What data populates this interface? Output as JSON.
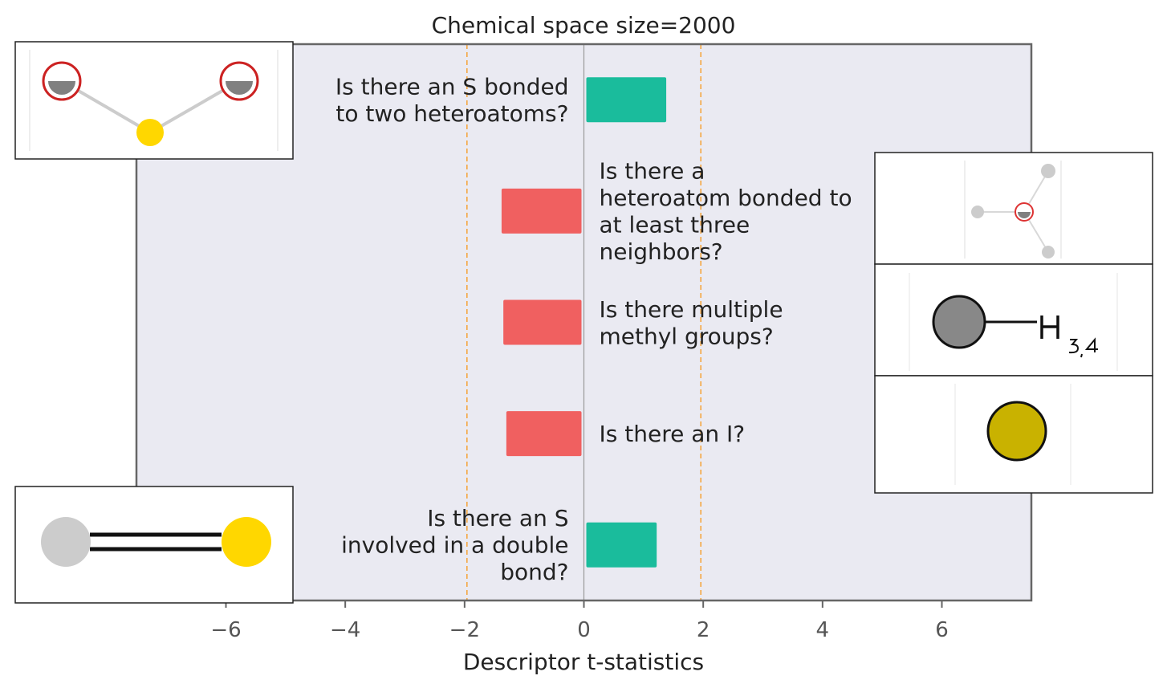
{
  "chart_data": {
    "type": "bar",
    "orientation": "horizontal",
    "title": "Chemical space size=2000",
    "xlabel": "Descriptor t-statistics",
    "ylabel": "",
    "xlim": [
      -7.5,
      7.5
    ],
    "xticks": [
      -6,
      -4,
      -2,
      0,
      2,
      4,
      6
    ],
    "xtick_labels": [
      "−6",
      "−4",
      "−2",
      "0",
      "2",
      "4",
      "6"
    ],
    "threshold_lines": [
      -1.96,
      1.96
    ],
    "grid": false,
    "categories": [
      "Is there an S bonded to two heteroatoms?",
      "Is there a heteroatom bonded to at least three neighbors?",
      "Is there multiple methyl groups?",
      "Is there an I?",
      "Is there an S involved in a double bond?"
    ],
    "label_lines": [
      [
        "Is there an S bonded",
        "to two heteroatoms?"
      ],
      [
        "Is there a",
        "heteroatom bonded to",
        "at least three",
        "neighbors?"
      ],
      [
        "Is there multiple",
        "methyl groups?"
      ],
      [
        "Is there an I?"
      ],
      [
        "Is there an S",
        "involved in a double",
        "bond?"
      ]
    ],
    "values": [
      1.38,
      -1.38,
      -1.35,
      -1.3,
      1.22
    ],
    "colors": {
      "positive": "#1abc9c",
      "negative": "#f06060",
      "background": "#eaeaf2",
      "threshold": "#f5a742",
      "zero_line": "#999999",
      "frame": "#666666"
    }
  }
}
